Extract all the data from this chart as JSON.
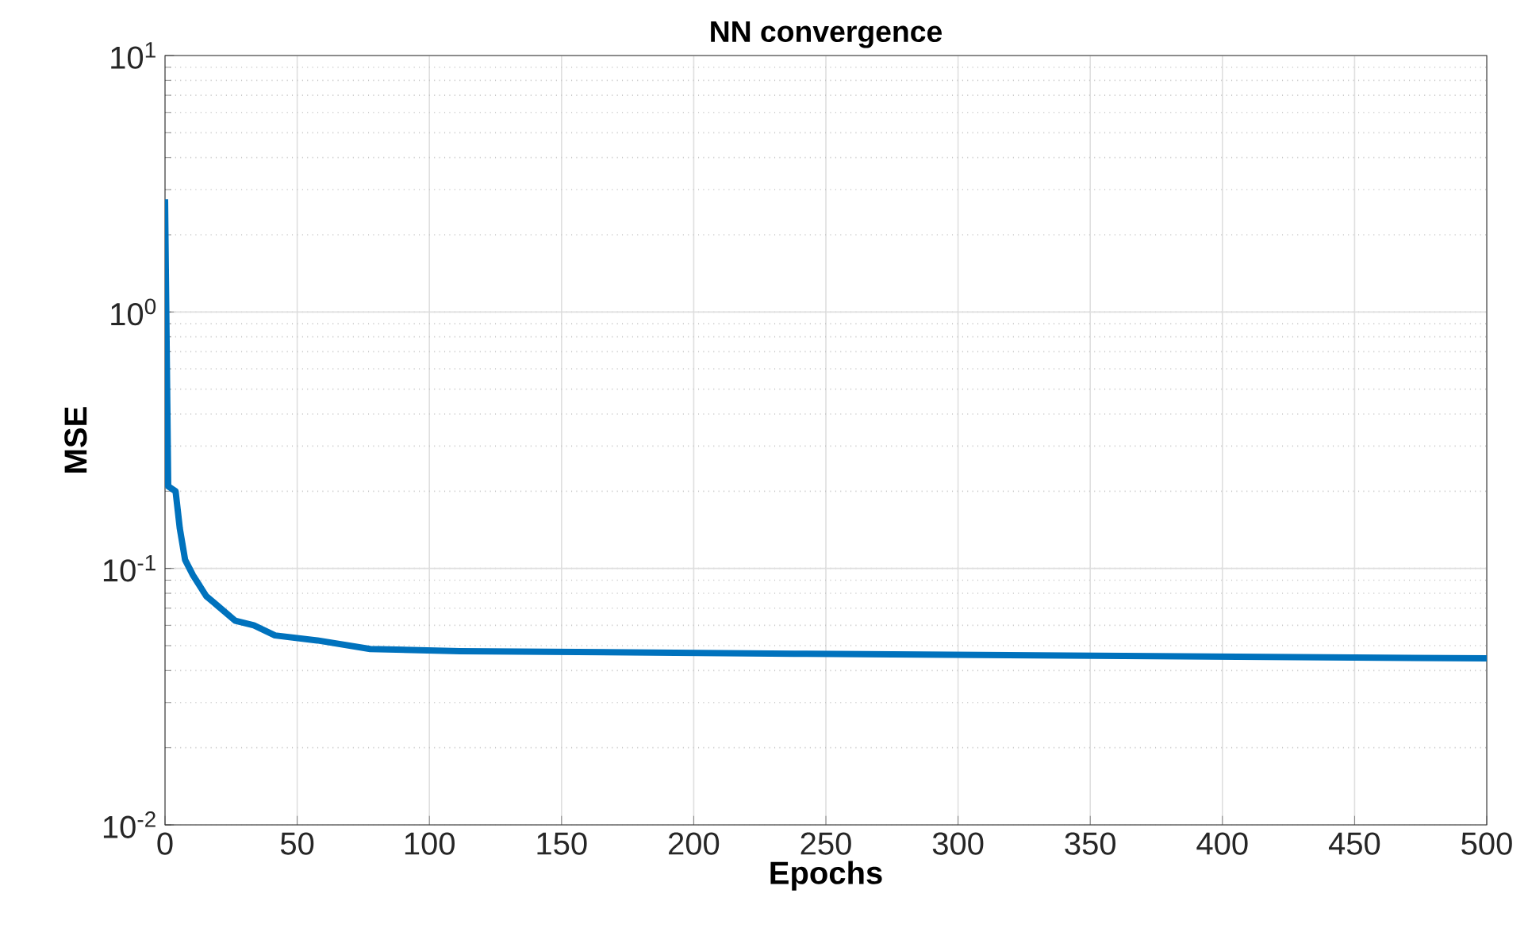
{
  "chart_data": {
    "type": "line",
    "title": "NN convergence",
    "xlabel": "Epochs",
    "ylabel": "MSE",
    "x": [
      0,
      1.2,
      4,
      5.6,
      7.6,
      10.6,
      15.6,
      19.6,
      26.6,
      33.6,
      41.6,
      57.6,
      77.6,
      111.6,
      238,
      500
    ],
    "series": [
      {
        "color": "#0072bd",
        "values": [
          2.75,
          0.209,
          0.2,
          0.143,
          0.108,
          0.094,
          0.078,
          0.072,
          0.0625,
          0.06,
          0.0548,
          0.0524,
          0.0485,
          0.0476,
          0.0465,
          0.0446
        ]
      }
    ],
    "xlim": [
      0,
      500
    ],
    "ylim": [
      0.01,
      10
    ],
    "log": "y",
    "grid": true,
    "marker": "none",
    "line_style": "solid",
    "xticks": [
      0,
      50,
      100,
      150,
      200,
      250,
      300,
      350,
      400,
      450,
      500
    ],
    "yticks": [
      {
        "value": 0.01,
        "label": "10$^{-2}$"
      },
      {
        "value": 0.1,
        "label": "10$^{-1}$"
      },
      {
        "value": 1,
        "label": "10$^{0}$"
      },
      {
        "value": 10,
        "label": "10$^{1}$"
      }
    ]
  }
}
